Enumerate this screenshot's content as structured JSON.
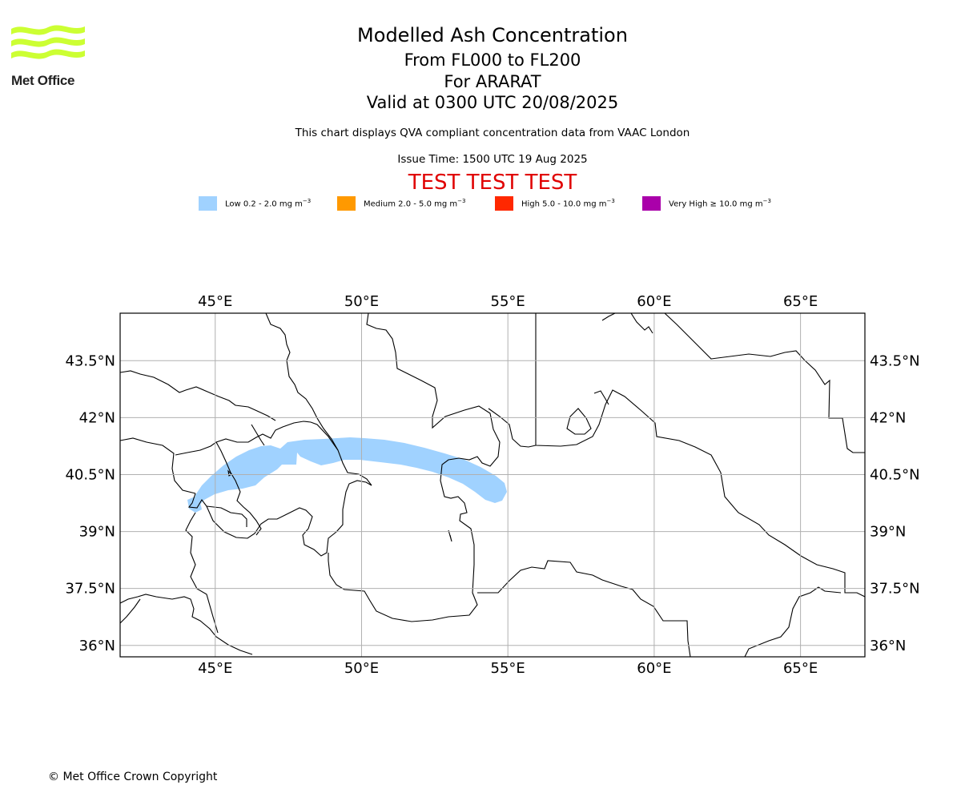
{
  "header": {
    "title": "Modelled Ash Concentration",
    "level_range": "From FL000 to FL200",
    "volcano": "For ARARAT",
    "valid_time": "Valid at 0300 UTC 20/08/2025",
    "note": "This chart displays QVA compliant concentration data from VAAC London",
    "issue_time": "Issue Time: 1500 UTC 19 Aug 2025",
    "test_banner": "TEST TEST TEST"
  },
  "logo": {
    "name": "Met Office",
    "color": "#ccff33"
  },
  "legend": [
    {
      "label": "Low 0.2 - 2.0 mg m",
      "sup": "−3",
      "color": "#a0d2ff"
    },
    {
      "label": "Medium 2.0 - 5.0 mg m",
      "sup": "−3",
      "color": "#ff9900"
    },
    {
      "label": "High 5.0 - 10.0 mg m",
      "sup": "−3",
      "color": "#ff2800"
    },
    {
      "label": "Very High  ≥  10.0 mg m",
      "sup": "−3",
      "color": "#aa00aa"
    }
  ],
  "map": {
    "lon_range": [
      41.75,
      67.2
    ],
    "lat_range": [
      35.7,
      44.75
    ],
    "lon_ticks": [
      45,
      50,
      55,
      60,
      65
    ],
    "lon_tick_labels": [
      "45°E",
      "50°E",
      "55°E",
      "60°E",
      "65°E"
    ],
    "lat_ticks": [
      36,
      37.5,
      39,
      40.5,
      42,
      43.5
    ],
    "lat_tick_labels": [
      "36°N",
      "37.5°N",
      "39°N",
      "40.5°N",
      "42°N",
      "43.5°N"
    ],
    "gridlines": true,
    "ash_cloud_level": "Low 0.2 - 2.0 mg m−3"
  },
  "footer": {
    "copyright": "© Met Office Crown Copyright"
  }
}
